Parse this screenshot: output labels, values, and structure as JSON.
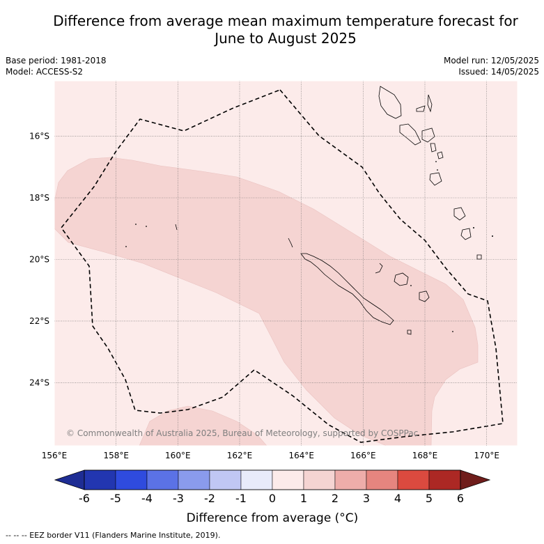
{
  "title_line1": "Difference from average mean maximum temperature forecast for",
  "title_line2": "June to August 2025",
  "base_period": "Base period: 1981-2018",
  "model": "Model: ACCESS-S2",
  "model_run": "Model run: 12/05/2025",
  "issued": "Issued: 14/05/2025",
  "map": {
    "lon_range": [
      156,
      171
    ],
    "lat_range": [
      -26.05,
      -14.2
    ],
    "lon_ticks": [
      156,
      158,
      160,
      162,
      164,
      166,
      168,
      170
    ],
    "lon_tick_labels": [
      "156°E",
      "158°E",
      "160°E",
      "162°E",
      "164°E",
      "166°E",
      "168°E",
      "170°E"
    ],
    "lat_ticks": [
      -16,
      -18,
      -20,
      -22,
      -24
    ],
    "lat_tick_labels": [
      "16°S",
      "18°S",
      "20°S",
      "22°S",
      "24°S"
    ],
    "gridlines": true,
    "background_class": "0 to 1",
    "copyright": "© Commonwealth of Australia 2025, Bureau of Meteorology, supported by COSPPac"
  },
  "colorbar": {
    "labels": [
      "-6",
      "-5",
      "-4",
      "-3",
      "-2",
      "-1",
      "0",
      "1",
      "2",
      "3",
      "4",
      "5",
      "6"
    ],
    "colors": [
      "#1e2d94",
      "#2236b0",
      "#2f4bde",
      "#5b72e6",
      "#8a9bec",
      "#c0c7f4",
      "#e8ebfa",
      "#fcebea",
      "#f5d4d2",
      "#eeadaa",
      "#e6857f",
      "#db4a3f",
      "#ac2824",
      "#6f1d1b"
    ],
    "label": "Difference from average (°C)"
  },
  "footnote": "-- -- -- EEZ border V11 (Flanders Marine Institute, 2019)."
}
